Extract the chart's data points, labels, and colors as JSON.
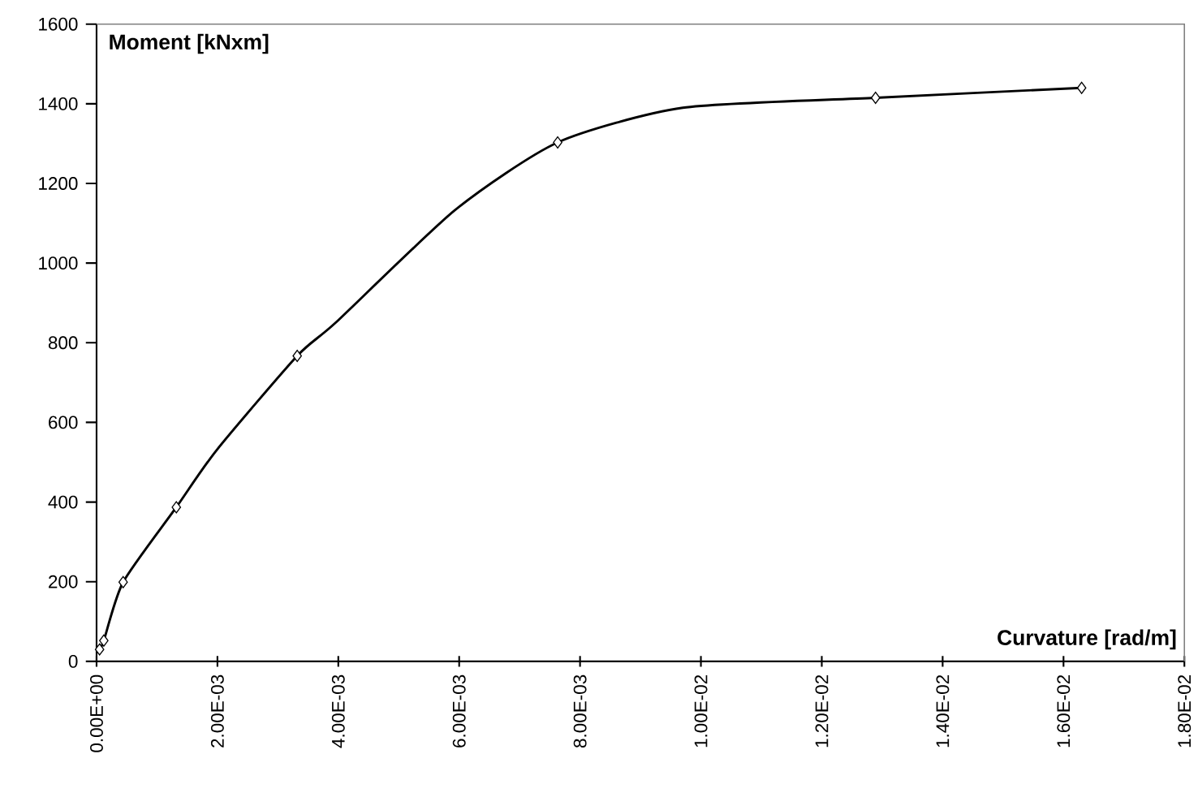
{
  "chart_data": {
    "type": "line",
    "xlabel": "Curvature [rad/m]",
    "ylabel": "Moment [kNxm]",
    "xlim": [
      0,
      0.018
    ],
    "ylim": [
      0,
      1600
    ],
    "xticks": [
      {
        "value": 0,
        "label": "0.00E+00"
      },
      {
        "value": 0.002,
        "label": "2.00E-03"
      },
      {
        "value": 0.004,
        "label": "4.00E-03"
      },
      {
        "value": 0.006,
        "label": "6.00E-03"
      },
      {
        "value": 0.008,
        "label": "8.00E-03"
      },
      {
        "value": 0.01,
        "label": "1.00E-02"
      },
      {
        "value": 0.012,
        "label": "1.20E-02"
      },
      {
        "value": 0.014,
        "label": "1.40E-02"
      },
      {
        "value": 0.016,
        "label": "1.60E-02"
      },
      {
        "value": 0.018,
        "label": "1.80E-02"
      }
    ],
    "yticks": [
      0,
      200,
      400,
      600,
      800,
      1000,
      1200,
      1400,
      1600
    ],
    "grid": false,
    "legend": false,
    "series": [
      {
        "type": "line",
        "color": "#000000",
        "marker": "none",
        "x": [
          5e-05,
          0.00012,
          0.00044,
          0.00132,
          0.00199,
          0.00332,
          0.00396,
          0.00593,
          0.00763,
          0.0097,
          0.01289,
          0.0163
        ],
        "values": [
          30,
          52,
          199,
          387,
          531,
          767,
          851,
          1133,
          1303,
          1390,
          1415,
          1440
        ]
      },
      {
        "type": "scatter",
        "color": "#000000",
        "marker": "diamond",
        "x": [
          5e-05,
          0.00012,
          0.00044,
          0.00132,
          0.00332,
          0.00763,
          0.01289,
          0.0163
        ],
        "values": [
          30,
          52,
          199,
          387,
          767,
          1303,
          1415,
          1440
        ]
      }
    ]
  }
}
